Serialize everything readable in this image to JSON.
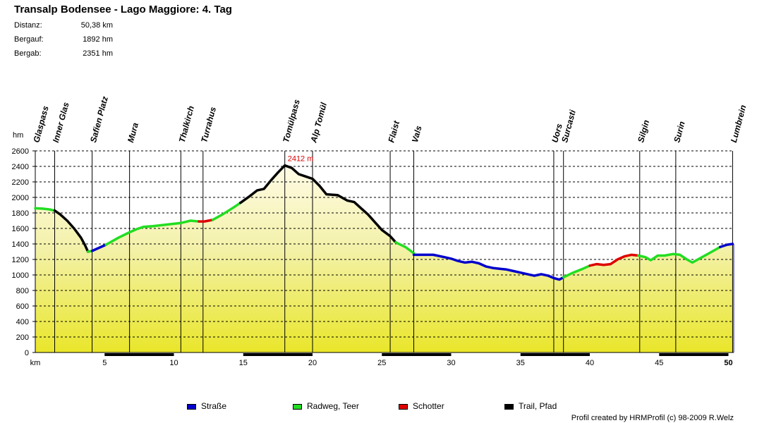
{
  "title": "Transalp Bodensee - Lago Maggiore: 4. Tag",
  "stats": [
    {
      "label": "Distanz:",
      "value": "50,38 km"
    },
    {
      "label": "Bergauf:",
      "value": "1892 hm"
    },
    {
      "label": "Bergab:",
      "value": "2351 hm"
    }
  ],
  "chart_data": {
    "type": "area",
    "ylabel": "hm",
    "xlabel": "km",
    "xlim": [
      0,
      50.38
    ],
    "ylim": [
      0,
      2600
    ],
    "y_ticks": [
      0,
      200,
      400,
      600,
      800,
      1000,
      1200,
      1400,
      1600,
      1800,
      2000,
      2200,
      2400,
      2600
    ],
    "y_tick_labels": [
      "0",
      "200",
      "400",
      "600",
      "800",
      "1000",
      "1200",
      "1400",
      "1600",
      "1800",
      "2000",
      "2200",
      "2400",
      "2600"
    ],
    "x_ticks": [
      5,
      10,
      15,
      20,
      25,
      30,
      35,
      40,
      45,
      50
    ],
    "x_tick_labels": [
      "5",
      "10",
      "15",
      "20",
      "25",
      "30",
      "35",
      "40",
      "45",
      "50"
    ],
    "peak_annotation": {
      "x": 18.0,
      "y": 2412,
      "text": "2412 m"
    },
    "waypoints": [
      {
        "name": "Glaspass",
        "km": 0.0
      },
      {
        "name": "Inner Glas",
        "km": 1.4
      },
      {
        "name": "Safien Platz",
        "km": 4.1
      },
      {
        "name": "Mura",
        "km": 6.8
      },
      {
        "name": "Thalkirch",
        "km": 10.5
      },
      {
        "name": "Turrahus",
        "km": 12.1
      },
      {
        "name": "Tomülpass",
        "km": 18.0
      },
      {
        "name": "Alp Tomül",
        "km": 20.0
      },
      {
        "name": "Flaist",
        "km": 25.6
      },
      {
        "name": "Vals",
        "km": 27.3
      },
      {
        "name": "Uors",
        "km": 37.4
      },
      {
        "name": "Surcasti",
        "km": 38.1
      },
      {
        "name": "Silgin",
        "km": 43.6
      },
      {
        "name": "Surin",
        "km": 46.2
      },
      {
        "name": "Lumbrein",
        "km": 50.3
      }
    ],
    "segments": [
      {
        "surface": "green",
        "points": [
          [
            0,
            1860
          ],
          [
            0.5,
            1855
          ],
          [
            1.0,
            1845
          ],
          [
            1.4,
            1830
          ]
        ]
      },
      {
        "surface": "black",
        "points": [
          [
            1.4,
            1830
          ],
          [
            1.8,
            1780
          ],
          [
            2.3,
            1700
          ],
          [
            2.8,
            1600
          ],
          [
            3.3,
            1480
          ],
          [
            3.6,
            1380
          ],
          [
            3.8,
            1300
          ]
        ]
      },
      {
        "surface": "green",
        "points": [
          [
            3.8,
            1300
          ],
          [
            4.1,
            1310
          ]
        ]
      },
      {
        "surface": "blue",
        "points": [
          [
            4.1,
            1310
          ],
          [
            4.6,
            1350
          ],
          [
            5.1,
            1390
          ]
        ]
      },
      {
        "surface": "green",
        "points": [
          [
            5.1,
            1390
          ],
          [
            6.0,
            1480
          ],
          [
            6.8,
            1550
          ],
          [
            7.3,
            1590
          ],
          [
            7.8,
            1620
          ],
          [
            8.5,
            1630
          ],
          [
            9.5,
            1650
          ],
          [
            10.5,
            1670
          ],
          [
            11.2,
            1700
          ],
          [
            11.8,
            1690
          ]
        ]
      },
      {
        "surface": "red",
        "points": [
          [
            11.8,
            1690
          ],
          [
            12.2,
            1690
          ],
          [
            12.8,
            1710
          ]
        ]
      },
      {
        "surface": "green",
        "points": [
          [
            12.8,
            1710
          ],
          [
            13.5,
            1780
          ],
          [
            14.3,
            1870
          ],
          [
            14.8,
            1930
          ]
        ]
      },
      {
        "surface": "black",
        "points": [
          [
            14.8,
            1930
          ],
          [
            15.5,
            2020
          ],
          [
            16.0,
            2090
          ],
          [
            16.5,
            2110
          ],
          [
            17.0,
            2220
          ],
          [
            17.5,
            2320
          ],
          [
            18.0,
            2412
          ],
          [
            18.5,
            2380
          ],
          [
            19.0,
            2300
          ],
          [
            19.5,
            2270
          ],
          [
            20.0,
            2240
          ],
          [
            20.5,
            2150
          ],
          [
            21.0,
            2040
          ],
          [
            21.8,
            2030
          ],
          [
            22.5,
            1960
          ],
          [
            23.0,
            1940
          ],
          [
            23.5,
            1860
          ],
          [
            24.0,
            1780
          ],
          [
            24.5,
            1680
          ],
          [
            25.0,
            1580
          ],
          [
            25.6,
            1500
          ],
          [
            26.0,
            1420
          ]
        ]
      },
      {
        "surface": "green",
        "points": [
          [
            26.0,
            1420
          ],
          [
            26.7,
            1360
          ],
          [
            27.3,
            1280
          ]
        ]
      },
      {
        "surface": "blue",
        "points": [
          [
            27.3,
            1260
          ],
          [
            28.0,
            1260
          ],
          [
            28.7,
            1260
          ],
          [
            29.5,
            1230
          ],
          [
            30.0,
            1210
          ],
          [
            30.5,
            1180
          ],
          [
            31.0,
            1160
          ],
          [
            31.5,
            1170
          ],
          [
            32.0,
            1150
          ],
          [
            32.5,
            1110
          ],
          [
            33.0,
            1090
          ],
          [
            33.5,
            1080
          ],
          [
            34.0,
            1070
          ],
          [
            34.5,
            1050
          ],
          [
            35.0,
            1030
          ],
          [
            35.5,
            1010
          ],
          [
            36.0,
            990
          ],
          [
            36.5,
            1010
          ],
          [
            37.0,
            990
          ],
          [
            37.4,
            960
          ],
          [
            37.8,
            940
          ],
          [
            38.1,
            970
          ]
        ]
      },
      {
        "surface": "green",
        "points": [
          [
            38.1,
            970
          ],
          [
            38.8,
            1030
          ],
          [
            39.5,
            1080
          ],
          [
            40.0,
            1120
          ]
        ]
      },
      {
        "surface": "red",
        "points": [
          [
            40.0,
            1120
          ],
          [
            40.5,
            1140
          ],
          [
            41.0,
            1130
          ],
          [
            41.5,
            1140
          ],
          [
            42.0,
            1200
          ],
          [
            42.5,
            1240
          ],
          [
            43.0,
            1260
          ],
          [
            43.5,
            1250
          ]
        ]
      },
      {
        "surface": "green",
        "points": [
          [
            43.5,
            1250
          ],
          [
            44.0,
            1230
          ],
          [
            44.4,
            1190
          ],
          [
            44.9,
            1250
          ],
          [
            45.4,
            1250
          ],
          [
            46.0,
            1270
          ],
          [
            46.5,
            1260
          ],
          [
            47.0,
            1200
          ],
          [
            47.4,
            1160
          ],
          [
            48.0,
            1220
          ],
          [
            48.7,
            1290
          ],
          [
            49.4,
            1360
          ]
        ]
      },
      {
        "surface": "blue",
        "points": [
          [
            49.4,
            1360
          ],
          [
            49.9,
            1390
          ],
          [
            50.3,
            1400
          ]
        ]
      }
    ],
    "colors": {
      "blue": "#0000cc",
      "green": "#22dd22",
      "red": "#dd0000",
      "black": "#000000",
      "annotation": "#dd0000",
      "axis_bar": "#000000"
    },
    "legend": [
      {
        "key": "blue",
        "label": "Straße"
      },
      {
        "key": "green",
        "label": "Radweg, Teer"
      },
      {
        "key": "red",
        "label": "Schotter"
      },
      {
        "key": "black",
        "label": "Trail, Pfad"
      }
    ]
  },
  "credit": "Profil created by HRMProfil (c) 98-2009 R.Welz"
}
